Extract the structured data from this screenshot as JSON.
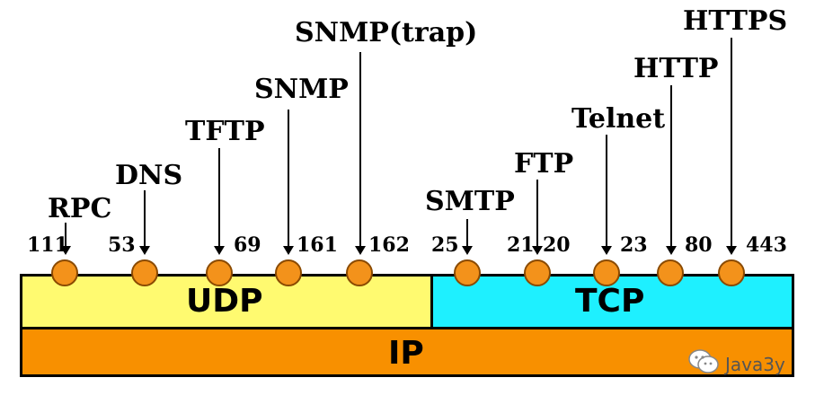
{
  "protocols": {
    "rpc": "RPC",
    "dns": "DNS",
    "tftp": "TFTP",
    "snmp": "SNMP",
    "snmp_trap": "SNMP(trap)",
    "smtp": "SMTP",
    "ftp": "FTP",
    "telnet": "Telnet",
    "http": "HTTP",
    "https": "HTTPS"
  },
  "ports": {
    "rpc": "111",
    "dns": "53",
    "tftp": "69",
    "snmp": "161",
    "snmp_trap": "162",
    "smtp": "25",
    "ftp_data": "21",
    "ftp_ctrl": "20",
    "telnet": "23",
    "http": "80",
    "https": "443"
  },
  "layers": {
    "udp": "UDP",
    "tcp": "TCP",
    "ip": "IP"
  },
  "colors": {
    "udp": "#fffa70",
    "tcp": "#1ef0ff",
    "ip": "#f89000",
    "port_circle": "#f3921b"
  },
  "watermark": {
    "text": "Java3y",
    "icon": "wechat-icon"
  }
}
